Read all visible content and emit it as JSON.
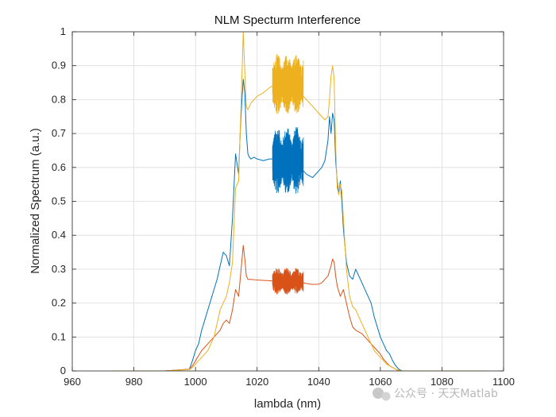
{
  "chart_data": {
    "type": "line",
    "title": "NLM Specturm Interference",
    "xlabel": "lambda (nm)",
    "ylabel": "Normalized Spectrum (a.u.)",
    "xlim": [
      960,
      1100
    ],
    "ylim": [
      0,
      1
    ],
    "xticks": [
      960,
      980,
      1000,
      1020,
      1040,
      1060,
      1080,
      1100
    ],
    "yticks": [
      0,
      0.1,
      0.2,
      0.3,
      0.4,
      0.5,
      0.6,
      0.7,
      0.8,
      0.9,
      1
    ],
    "ytick_labels": [
      "0",
      "0.1",
      "0.2",
      "0.3",
      "0.4",
      "0.5",
      "0.6",
      "0.7",
      "0.8",
      "0.9",
      "1"
    ],
    "grid": true,
    "series": [
      {
        "color": "#0072BD",
        "x": [
          973,
          990,
          998,
          999,
          1000,
          1001,
          1002,
          1003,
          1004,
          1005,
          1006,
          1007,
          1008,
          1009,
          1010,
          1011,
          1012,
          1013,
          1014,
          1014.5,
          1015,
          1015.5,
          1016,
          1016.5,
          1017,
          1017.5,
          1018,
          1019,
          1020,
          1022,
          1024,
          1025,
          1026,
          1028,
          1030,
          1032,
          1034,
          1035,
          1036,
          1038,
          1040,
          1041,
          1042,
          1043,
          1043.5,
          1044,
          1044.5,
          1045,
          1045.5,
          1046,
          1046.5,
          1047,
          1047.5,
          1048,
          1049,
          1050,
          1051,
          1052,
          1053,
          1054,
          1055,
          1056,
          1057,
          1058,
          1059,
          1060,
          1061,
          1062,
          1063,
          1064,
          1065,
          1066,
          1067,
          1070,
          1095
        ],
        "y": [
          0,
          0,
          0.005,
          0.03,
          0.06,
          0.08,
          0.12,
          0.15,
          0.18,
          0.21,
          0.24,
          0.27,
          0.31,
          0.35,
          0.34,
          0.31,
          0.45,
          0.64,
          0.58,
          0.7,
          0.79,
          0.86,
          0.82,
          0.7,
          0.64,
          0.63,
          0.625,
          0.63,
          0.625,
          0.62,
          0.625,
          0.625,
          0.62,
          0.615,
          0.61,
          0.6,
          0.6,
          0.59,
          0.58,
          0.57,
          0.59,
          0.6,
          0.62,
          0.68,
          0.75,
          0.7,
          0.76,
          0.74,
          0.62,
          0.56,
          0.52,
          0.56,
          0.5,
          0.42,
          0.32,
          0.28,
          0.27,
          0.3,
          0.28,
          0.26,
          0.24,
          0.22,
          0.2,
          0.16,
          0.13,
          0.1,
          0.08,
          0.06,
          0.05,
          0.03,
          0.015,
          0.005,
          0,
          0,
          0
        ],
        "noise_band": {
          "x_range": [
            1025,
            1035
          ],
          "center": 0.62,
          "amplitude": 0.1
        }
      },
      {
        "color": "#D95319",
        "x": [
          973,
          990,
          998,
          999,
          1000,
          1001,
          1002,
          1003,
          1004,
          1005,
          1006,
          1007,
          1008,
          1009,
          1010,
          1011,
          1012,
          1013,
          1014,
          1014.5,
          1015,
          1015.5,
          1016,
          1016.5,
          1017,
          1018,
          1020,
          1022,
          1024,
          1025,
          1030,
          1035,
          1036,
          1038,
          1040,
          1041,
          1042,
          1043,
          1044,
          1044.5,
          1045,
          1045.5,
          1046,
          1047,
          1048,
          1049,
          1050,
          1051,
          1052,
          1053,
          1054,
          1055,
          1056,
          1057,
          1058,
          1059,
          1060,
          1061,
          1062,
          1063,
          1064,
          1065,
          1066,
          1067,
          1070,
          1095
        ],
        "y": [
          0,
          0,
          0.005,
          0.015,
          0.03,
          0.045,
          0.06,
          0.07,
          0.08,
          0.09,
          0.1,
          0.11,
          0.12,
          0.14,
          0.15,
          0.14,
          0.18,
          0.24,
          0.22,
          0.27,
          0.32,
          0.37,
          0.33,
          0.28,
          0.27,
          0.27,
          0.268,
          0.267,
          0.266,
          0.265,
          0.265,
          0.26,
          0.258,
          0.255,
          0.256,
          0.26,
          0.27,
          0.28,
          0.31,
          0.33,
          0.32,
          0.28,
          0.25,
          0.22,
          0.24,
          0.2,
          0.16,
          0.13,
          0.12,
          0.115,
          0.11,
          0.1,
          0.09,
          0.08,
          0.07,
          0.06,
          0.05,
          0.035,
          0.025,
          0.015,
          0.01,
          0.005,
          0,
          0,
          0,
          0
        ],
        "noise_band": {
          "x_range": [
            1025,
            1035
          ],
          "center": 0.265,
          "amplitude": 0.04
        }
      },
      {
        "color": "#EDB120",
        "x": [
          973,
          990,
          998,
          999,
          1000,
          1001,
          1002,
          1003,
          1004,
          1005,
          1006,
          1007,
          1008,
          1009,
          1010,
          1011,
          1012,
          1013,
          1014,
          1014.5,
          1015,
          1015.5,
          1016,
          1016.5,
          1017,
          1018,
          1019,
          1020,
          1022,
          1024,
          1025,
          1026,
          1028,
          1030,
          1032,
          1034,
          1035,
          1036,
          1038,
          1040,
          1041,
          1042,
          1043,
          1043.5,
          1044,
          1044.5,
          1045,
          1045.5,
          1046,
          1046.5,
          1047,
          1047.5,
          1048,
          1049,
          1050,
          1051,
          1052,
          1053,
          1054,
          1055,
          1056,
          1057,
          1058,
          1059,
          1060,
          1061,
          1062,
          1063,
          1064,
          1065,
          1066,
          1067,
          1070,
          1095
        ],
        "y": [
          0,
          0,
          0.004,
          0.01,
          0.02,
          0.03,
          0.04,
          0.05,
          0.06,
          0.08,
          0.1,
          0.14,
          0.18,
          0.2,
          0.22,
          0.26,
          0.32,
          0.54,
          0.56,
          0.7,
          0.85,
          1.0,
          0.88,
          0.78,
          0.77,
          0.79,
          0.8,
          0.81,
          0.82,
          0.835,
          0.84,
          0.845,
          0.85,
          0.85,
          0.84,
          0.82,
          0.81,
          0.8,
          0.78,
          0.76,
          0.75,
          0.74,
          0.75,
          0.8,
          0.87,
          0.9,
          0.86,
          0.66,
          0.54,
          0.52,
          0.55,
          0.53,
          0.45,
          0.3,
          0.22,
          0.19,
          0.18,
          0.16,
          0.14,
          0.12,
          0.1,
          0.08,
          0.06,
          0.05,
          0.04,
          0.03,
          0.02,
          0.015,
          0.01,
          0.005,
          0.002,
          0,
          0,
          0
        ],
        "noise_band": {
          "x_range": [
            1025,
            1035
          ],
          "center": 0.845,
          "amplitude": 0.09
        }
      }
    ]
  },
  "watermark": "公众号 · 天天Matlab"
}
